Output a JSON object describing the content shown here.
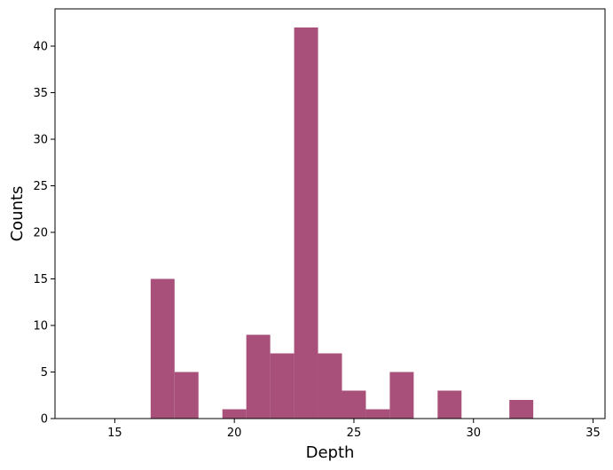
{
  "chart_data": {
    "type": "bar",
    "subtype": "histogram",
    "title": "",
    "xlabel": "Depth",
    "ylabel": "Counts",
    "xlim": [
      12.5,
      35.5
    ],
    "ylim": [
      0,
      44
    ],
    "x_ticks": [
      15,
      20,
      25,
      30,
      35
    ],
    "y_ticks": [
      0,
      5,
      10,
      15,
      20,
      25,
      30,
      35,
      40
    ],
    "grid": false,
    "legend": "none",
    "bar_color": "#a8507a",
    "bins": [
      {
        "x0": 16.5,
        "x1": 17.5,
        "count": 15
      },
      {
        "x0": 17.5,
        "x1": 18.5,
        "count": 5
      },
      {
        "x0": 19.5,
        "x1": 20.5,
        "count": 1
      },
      {
        "x0": 20.5,
        "x1": 21.5,
        "count": 9
      },
      {
        "x0": 21.5,
        "x1": 22.5,
        "count": 7
      },
      {
        "x0": 22.5,
        "x1": 23.5,
        "count": 42
      },
      {
        "x0": 23.5,
        "x1": 24.5,
        "count": 7
      },
      {
        "x0": 24.5,
        "x1": 25.5,
        "count": 3
      },
      {
        "x0": 25.5,
        "x1": 26.5,
        "count": 1
      },
      {
        "x0": 26.5,
        "x1": 27.5,
        "count": 5
      },
      {
        "x0": 28.5,
        "x1": 29.5,
        "count": 3
      },
      {
        "x0": 31.5,
        "x1": 32.5,
        "count": 2
      }
    ]
  }
}
